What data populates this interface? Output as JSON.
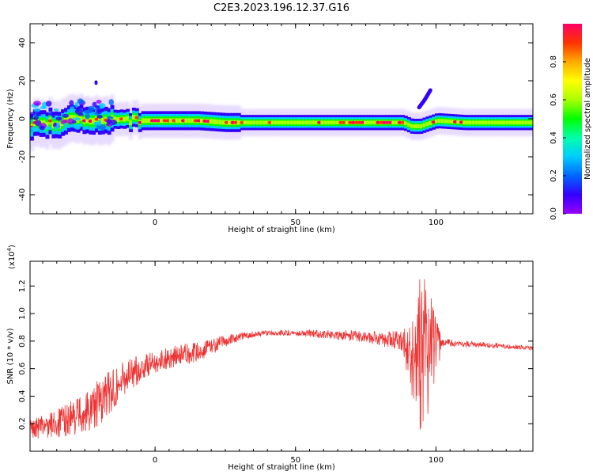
{
  "figure": {
    "title": "C2E3.2023.196.12.37.G16"
  },
  "chart_data": [
    {
      "type": "heatmap",
      "xlabel": "Height of straight line (km)",
      "ylabel": "Frequency (Hz)",
      "xlim": [
        -44.5,
        134.5
      ],
      "ylim": [
        -50,
        50
      ],
      "x_ticks": [
        0,
        50,
        100
      ],
      "y_ticks": [
        -40,
        -20,
        0,
        20,
        40
      ],
      "grid": false,
      "colorbar": {
        "label": "Normalized spectral amplitude",
        "range": [
          0.0,
          1.0
        ],
        "ticks": [
          0.0,
          0.2,
          0.4,
          0.6,
          0.8
        ],
        "colormap": [
          "#9900ff",
          "#3300ff",
          "#0066ff",
          "#00ccff",
          "#00ffaa",
          "#00ff00",
          "#aaff00",
          "#ffff00",
          "#ffaa00",
          "#ff3300",
          "#ff0066"
        ]
      },
      "ridge": {
        "x": [
          -44,
          -35,
          -25,
          -15,
          -5,
          5,
          15,
          25,
          40,
          55,
          70,
          80,
          88,
          91,
          94,
          100,
          110,
          120,
          134
        ],
        "frequency": [
          -3,
          -2,
          0,
          0,
          -1,
          -1,
          -1,
          -2,
          -2,
          -2,
          -2,
          -2,
          -2,
          -4,
          -4,
          -1,
          -2,
          -2,
          -2
        ]
      },
      "drift_branch": {
        "x": [
          94,
          96,
          98
        ],
        "frequency": [
          6,
          10,
          15
        ]
      }
    },
    {
      "type": "line",
      "xlabel": "Height of straight line (km)",
      "ylabel": "SNR (10 * v/v)",
      "yscale_label": "(x10",
      "yscale_exp": "4",
      "yscale_close": ")",
      "xlim": [
        -44.5,
        134.5
      ],
      "ylim": [
        0.0,
        1.38
      ],
      "x_ticks": [
        0,
        50,
        100
      ],
      "y_ticks": [
        0.2,
        0.4,
        0.6,
        0.8,
        1.0,
        1.2
      ],
      "grid": false,
      "series": [
        {
          "color": "#ee3333",
          "envelope": {
            "x": [
              -44,
              -35,
              -25,
              -20,
              -15,
              -10,
              -5,
              0,
              5,
              10,
              15,
              20,
              25,
              30,
              35,
              40,
              50,
              60,
              70,
              80,
              88,
              92,
              94,
              96,
              98,
              100,
              102,
              110,
              120,
              134
            ],
            "mean": [
              0.16,
              0.2,
              0.28,
              0.35,
              0.45,
              0.55,
              0.6,
              0.65,
              0.68,
              0.7,
              0.72,
              0.76,
              0.8,
              0.83,
              0.85,
              0.86,
              0.86,
              0.85,
              0.84,
              0.82,
              0.8,
              0.65,
              0.7,
              0.72,
              0.75,
              0.72,
              0.79,
              0.78,
              0.77,
              0.75
            ],
            "spread": [
              0.07,
              0.1,
              0.15,
              0.18,
              0.15,
              0.12,
              0.1,
              0.08,
              0.08,
              0.08,
              0.07,
              0.06,
              0.04,
              0.03,
              0.02,
              0.02,
              0.02,
              0.03,
              0.04,
              0.05,
              0.08,
              0.3,
              0.6,
              0.55,
              0.4,
              0.3,
              0.03,
              0.02,
              0.02,
              0.015
            ]
          }
        }
      ]
    }
  ]
}
